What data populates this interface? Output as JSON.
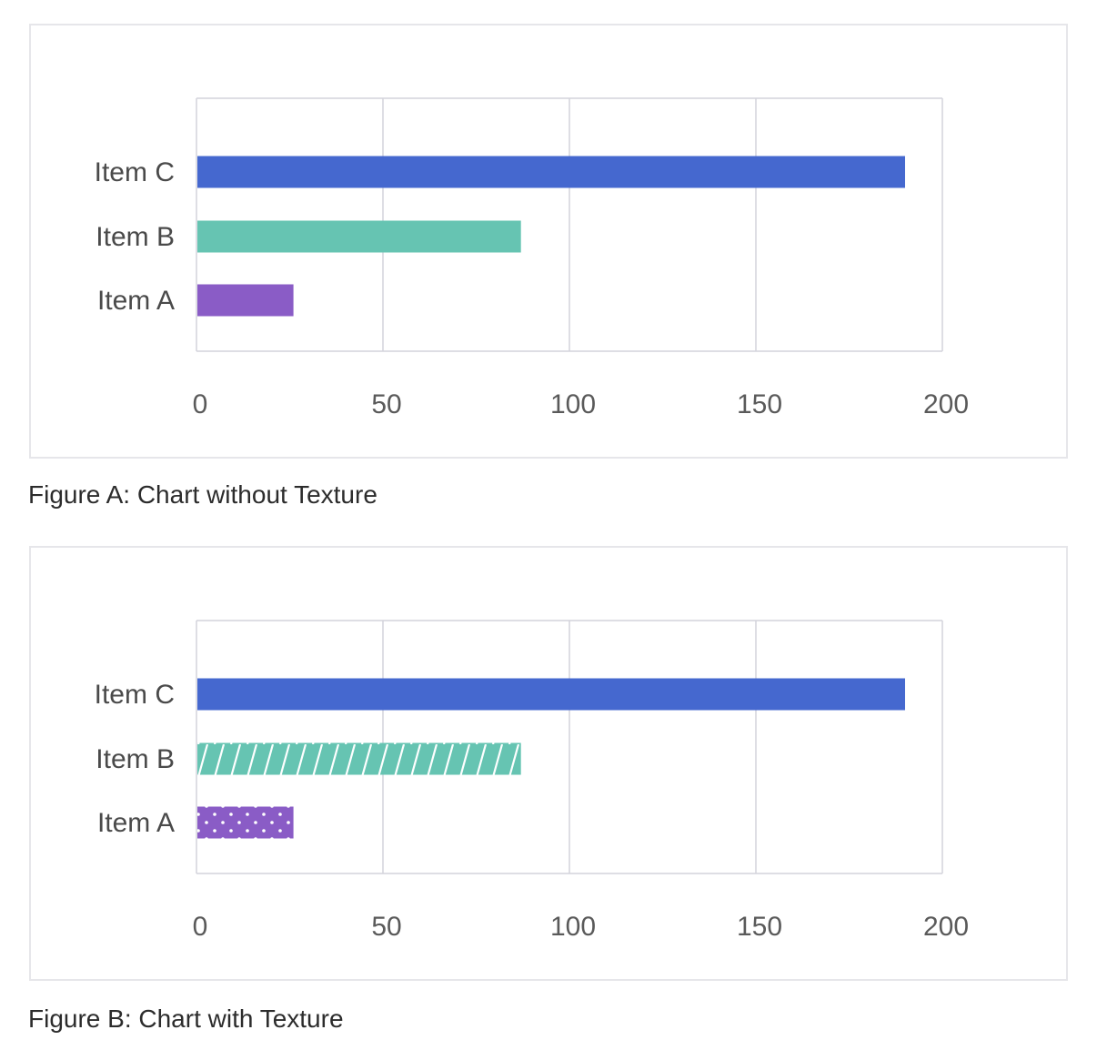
{
  "chart_data": [
    {
      "type": "bar",
      "orientation": "horizontal",
      "caption": "Figure A: Chart without Texture",
      "categories": [
        "Item A",
        "Item B",
        "Item C"
      ],
      "values": [
        26,
        87,
        190
      ],
      "xlim": [
        0,
        200
      ],
      "xticks": [
        0,
        50,
        100,
        150,
        200
      ],
      "grid": true,
      "colors": [
        "#8a5cc6",
        "#66c4b2",
        "#4568cf"
      ],
      "textures": [
        "none",
        "none",
        "none"
      ]
    },
    {
      "type": "bar",
      "orientation": "horizontal",
      "caption": "Figure B: Chart with Texture",
      "categories": [
        "Item A",
        "Item B",
        "Item C"
      ],
      "values": [
        26,
        87,
        190
      ],
      "xlim": [
        0,
        200
      ],
      "xticks": [
        0,
        50,
        100,
        150,
        200
      ],
      "grid": true,
      "colors": [
        "#8a5cc6",
        "#66c4b2",
        "#4568cf"
      ],
      "textures": [
        "dots",
        "diagonal-stripes",
        "none"
      ]
    }
  ]
}
